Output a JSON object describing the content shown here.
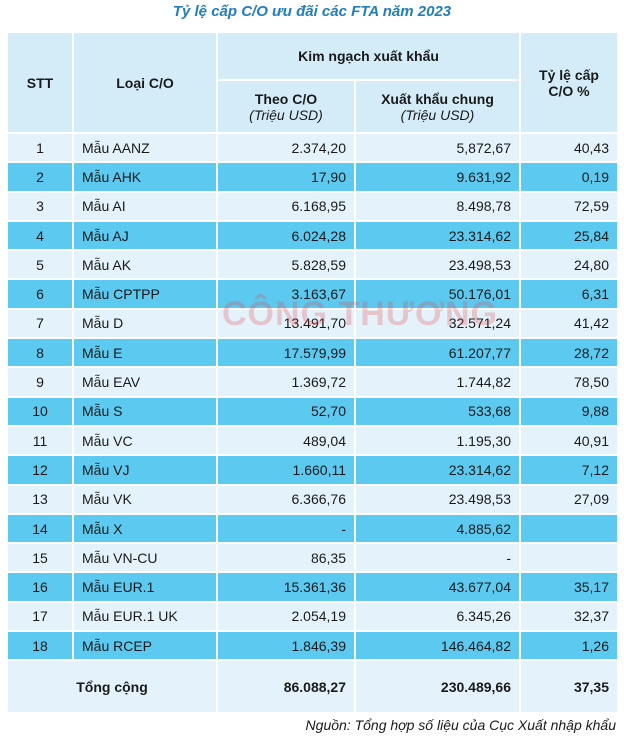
{
  "header": {
    "title": "Tỷ lệ cấp C/O ưu đãi các FTA năm 2023"
  },
  "table": {
    "columns": {
      "stt": "STT",
      "type": "Loại C/O",
      "group": "Kim ngạch xuất khẩu",
      "co": "Theo C/O",
      "co_unit": "(Triệu USD)",
      "export": "Xuất khẩu chung",
      "export_unit": "(Triệu USD)",
      "rate": "Tỷ lệ cấp C/O %"
    },
    "rows": [
      [
        "1",
        "Mẫu AANZ",
        "2.374,20",
        "5,872,67",
        "40,43"
      ],
      [
        "2",
        "Mẫu AHK",
        "17,90",
        "9.631,92",
        "0,19"
      ],
      [
        "3",
        "Mẫu AI",
        "6.168,95",
        "8.498,78",
        "72,59"
      ],
      [
        "4",
        "Mẫu AJ",
        "6.024,28",
        "23.314,62",
        "25,84"
      ],
      [
        "5",
        "Mẫu AK",
        "5.828,59",
        "23.498,53",
        "24,80"
      ],
      [
        "6",
        "Mẫu CPTPP",
        "3.163,67",
        "50.176,01",
        "6,31"
      ],
      [
        "7",
        "Mẫu D",
        "13.491,70",
        "32.571,24",
        "41,42"
      ],
      [
        "8",
        "Mẫu E",
        "17.579,99",
        "61.207,77",
        "28,72"
      ],
      [
        "9",
        "Mẫu EAV",
        "1.369,72",
        "1.744,82",
        "78,50"
      ],
      [
        "10",
        "Mẫu S",
        "52,70",
        "533,68",
        "9,88"
      ],
      [
        "11",
        "Mẫu VC",
        "489,04",
        "1.195,30",
        "40,91"
      ],
      [
        "12",
        "Mẫu VJ",
        "1.660,11",
        "23.314,62",
        "7,12"
      ],
      [
        "13",
        "Mẫu VK",
        "6.366,76",
        "23.498,53",
        "27,09"
      ],
      [
        "14",
        "Mẫu X",
        "-",
        "4.885,62",
        null
      ],
      [
        "15",
        "Mẫu VN-CU",
        "86,35",
        "-",
        null
      ],
      [
        "16",
        "Mẫu EUR.1",
        "15.361,36",
        "43.677,04",
        "35,17"
      ],
      [
        "17",
        "Mẫu EUR.1 UK",
        "2.054,19",
        "6.345,26",
        "32,37"
      ],
      [
        "18",
        "Mẫu RCEP",
        "1.846,39",
        "146.464,82",
        "1,26"
      ]
    ],
    "total": [
      "Tổng cộng",
      "86.088,27",
      "230.489,66",
      "37,35"
    ]
  },
  "watermark": "CÔNG THƯƠNG",
  "footer": {
    "source": "Nguồn: Tổng hợp số liệu của Cục Xuất nhập khẩu"
  }
}
